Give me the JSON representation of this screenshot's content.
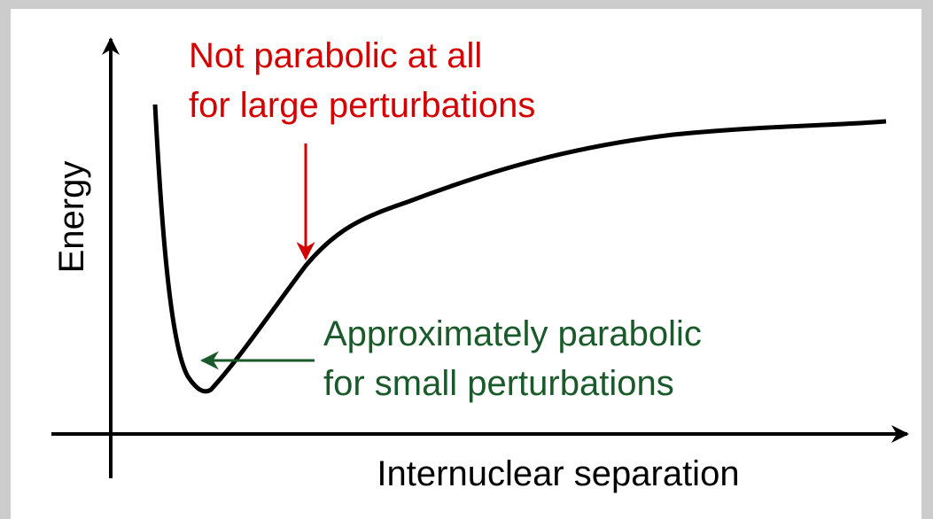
{
  "axes": {
    "y_label": "Energy",
    "x_label": "Internuclear separation"
  },
  "annotations": [
    {
      "lines": [
        "Not parabolic at all",
        "for large perturbations"
      ]
    },
    {
      "lines": [
        "Approximately parabolic",
        "for small perturbations"
      ]
    }
  ]
}
